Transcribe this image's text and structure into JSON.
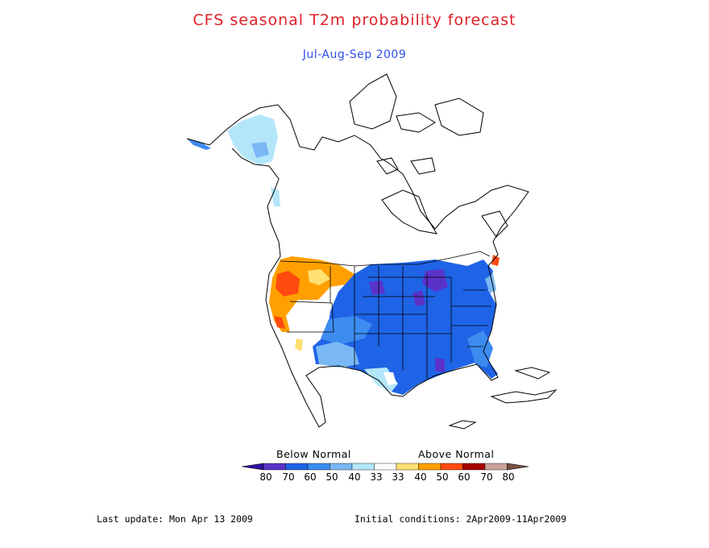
{
  "title": "CFS seasonal T2m probability forecast",
  "subtitle": "Jul-Aug-Sep 2009",
  "colors": {
    "title": "#e0202a",
    "subtitle": "#3050e8",
    "outline": "#000000"
  },
  "legend": {
    "below_label": "Below Normal",
    "above_label": "Above Normal",
    "tick_labels": [
      "80",
      "70",
      "60",
      "50",
      "40",
      "33",
      "33",
      "40",
      "50",
      "60",
      "70",
      "80"
    ],
    "colors": [
      "#2f10a0",
      "#5a32c8",
      "#1f63e6",
      "#3c8cf0",
      "#7ab8f5",
      "#b4e6fa",
      "#ffffff",
      "#ffe070",
      "#ffa000",
      "#ff4a10",
      "#a50000",
      "#c8a098",
      "#785040"
    ]
  },
  "footer": {
    "last_update": "Last update: Mon Apr 13 2009",
    "initial_conditions": "Initial conditions: 2Apr2009-11Apr2009"
  }
}
